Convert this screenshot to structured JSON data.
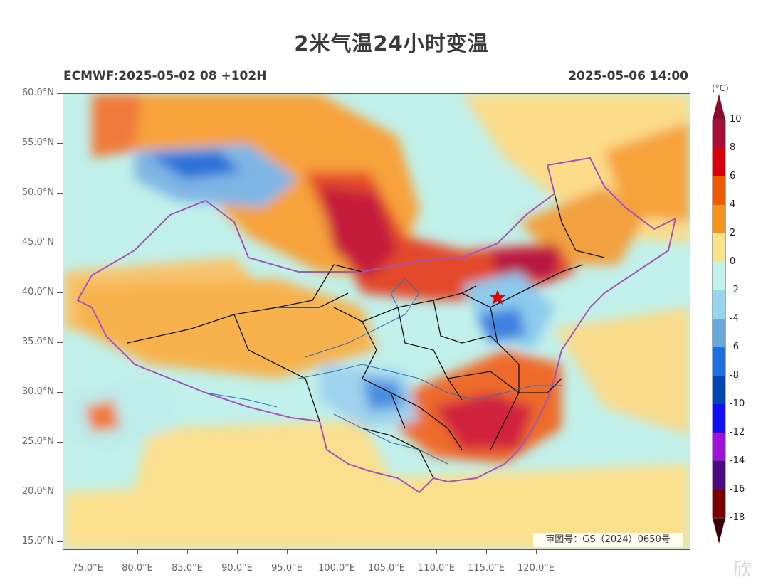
{
  "title": "2米气温24小时变温",
  "subtitle_left": "ECMWF:2025-05-02 08 +102H",
  "subtitle_right": "2025-05-06 14:00",
  "map": {
    "lat_ticks": [
      "60.0°N",
      "55.0°N",
      "50.0°N",
      "45.0°N",
      "40.0°N",
      "35.0°N",
      "30.0°N",
      "25.0°N",
      "20.0°N",
      "15.0°N"
    ],
    "lon_ticks": [
      "75.0°E",
      "80.0°E",
      "85.0°E",
      "90.0°E",
      "95.0°E",
      "100.0°E",
      "105.0°E",
      "110.0°E",
      "115.0°E",
      "120.0°E"
    ],
    "review_number": "审图号：GS（2024）0650号"
  },
  "legend": {
    "unit": "(°C)",
    "labels": [
      "10",
      "8",
      "6",
      "4",
      "2",
      "0",
      "-2",
      "-4",
      "-6",
      "-8",
      "-10",
      "-12",
      "-14",
      "-16",
      "-18"
    ],
    "colors": [
      "#a50f3b",
      "#d7000f",
      "#ee5a00",
      "#f7921e",
      "#fce28a",
      "#c4f3ea",
      "#98d6ef",
      "#6aa8d9",
      "#1f6fe0",
      "#0045b0",
      "#1010f0",
      "#9b14d6",
      "#4b0a80",
      "#7a0000"
    ]
  },
  "watermark": "欣"
}
